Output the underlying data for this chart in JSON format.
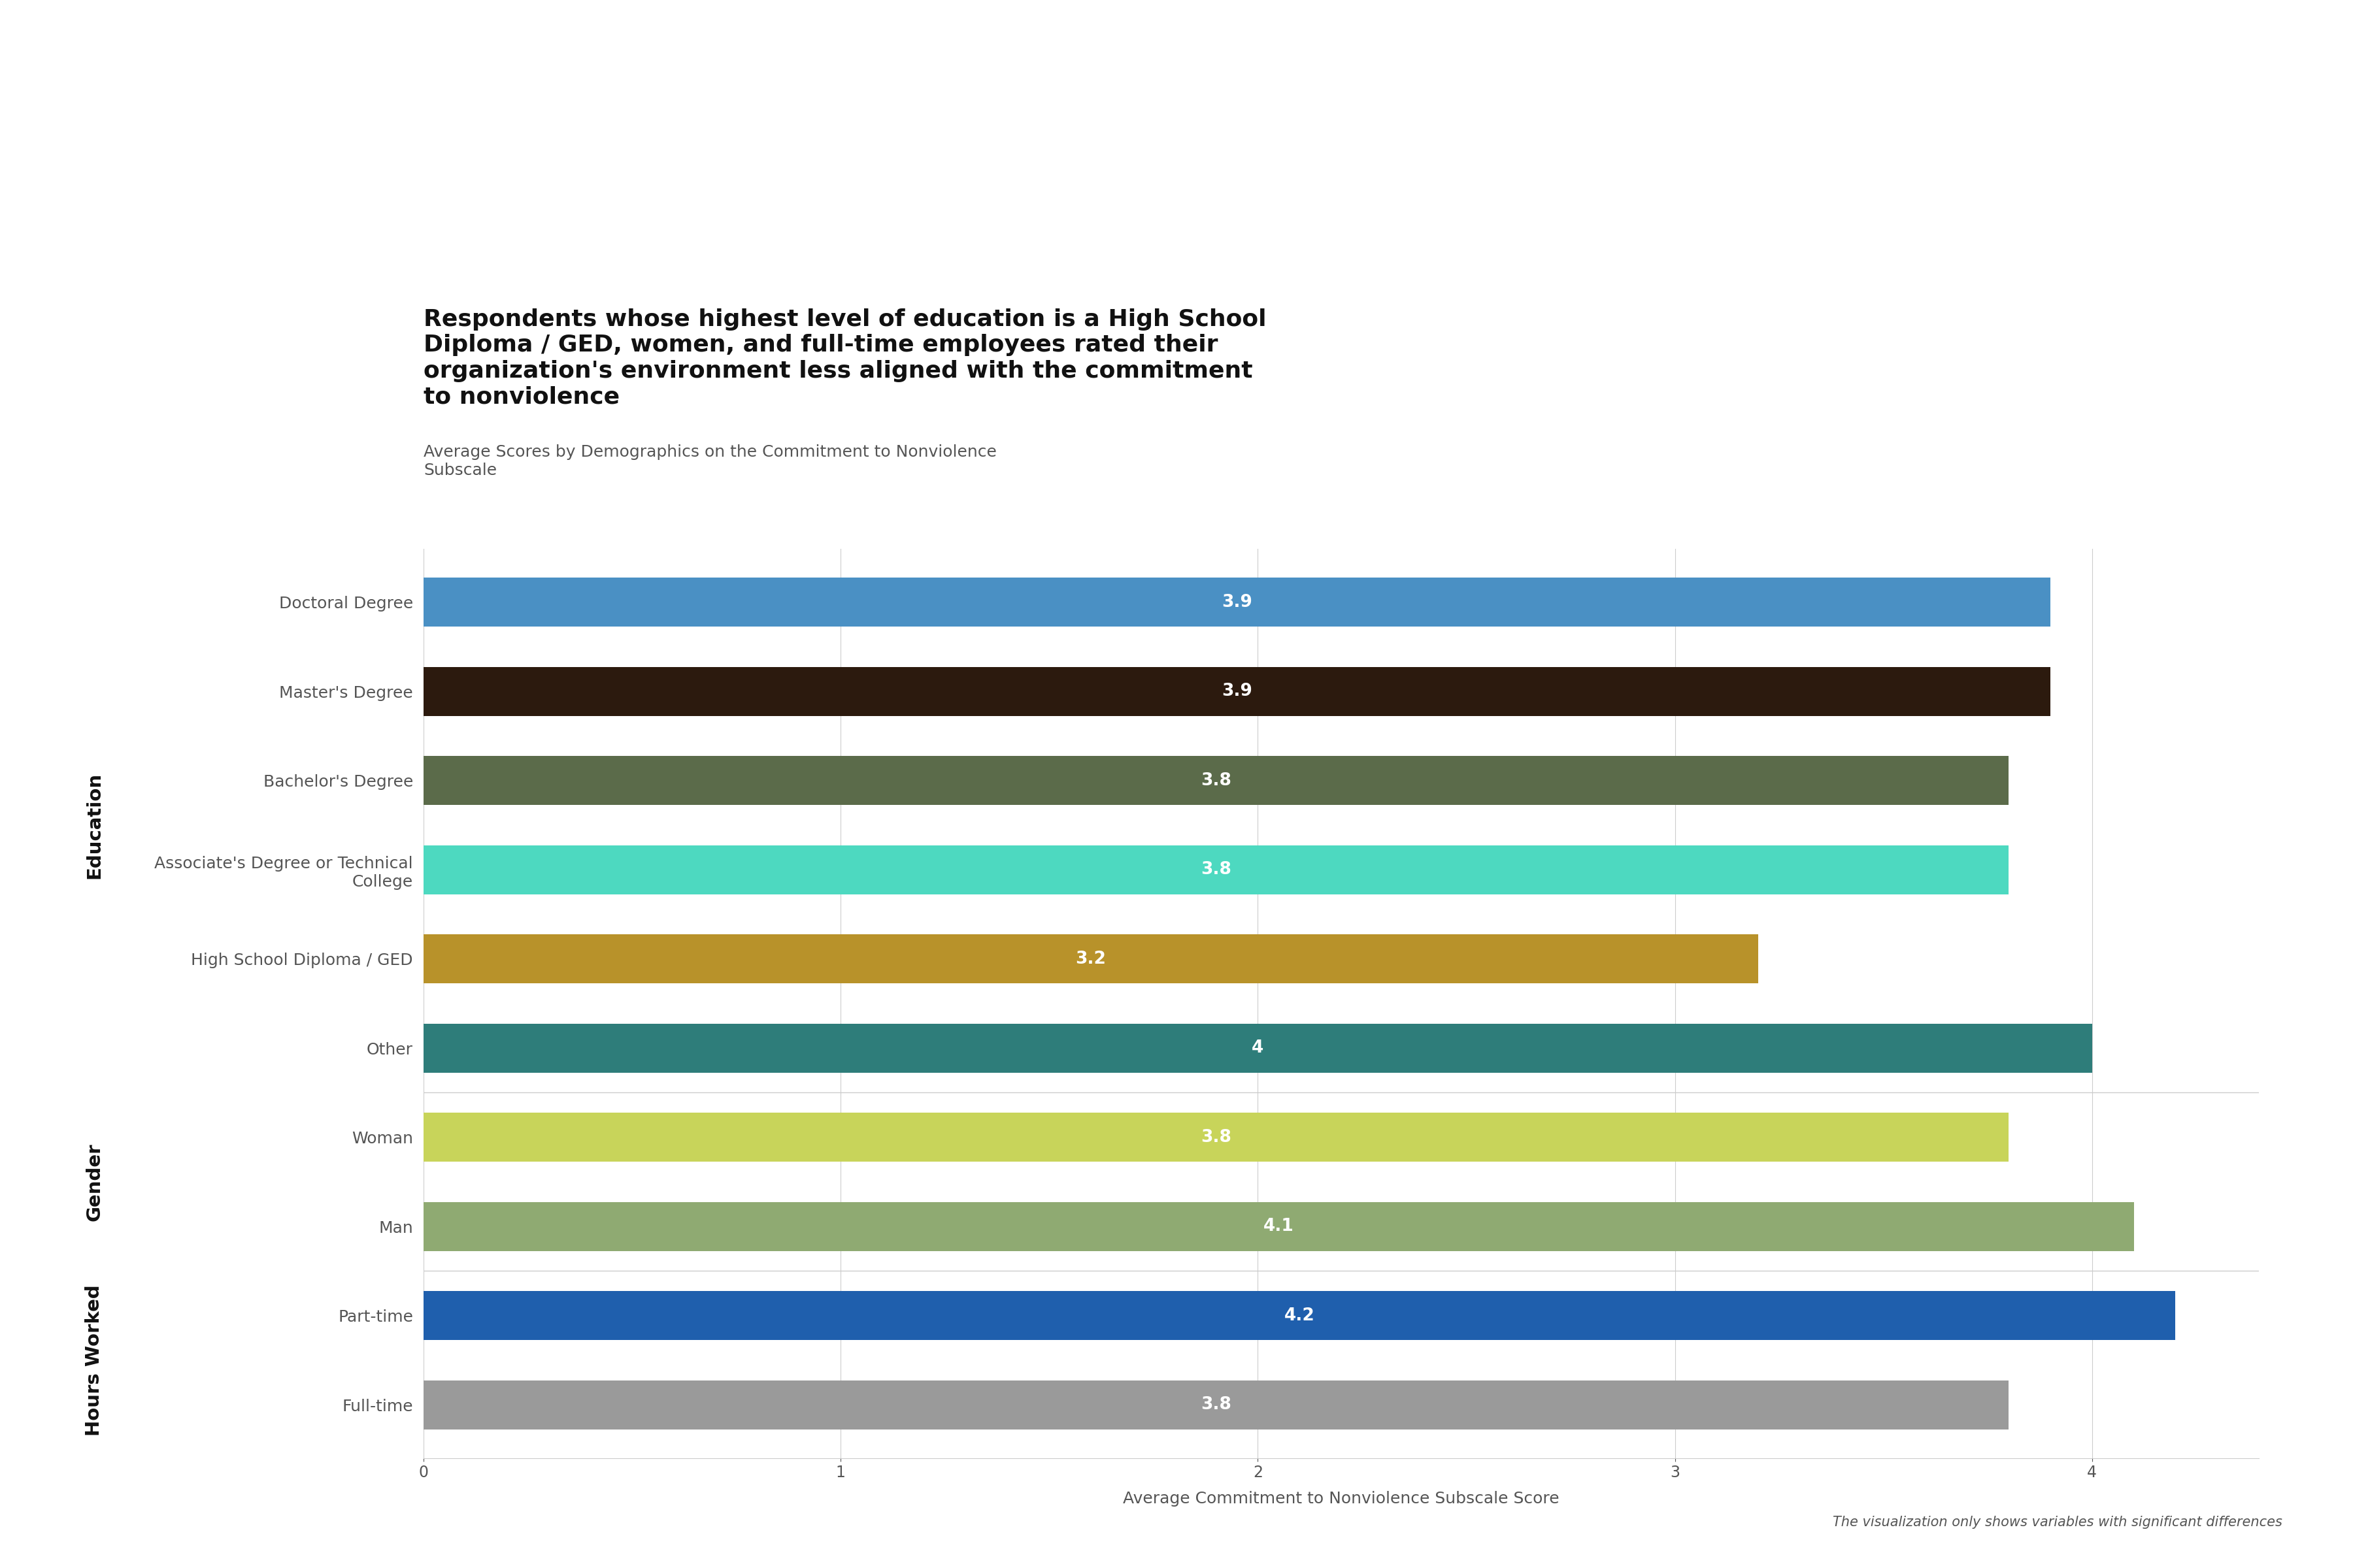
{
  "title_main": "Respondents whose highest level of education is a High School\nDiploma / GED, women, and full-time employees rated their\norganization's environment less aligned with the commitment\nto nonviolence",
  "title_sub": "Average Scores by Demographics on the Commitment to Nonviolence\nSubscale",
  "xlabel": "Average Commitment to Nonviolence Subscale Score",
  "footnote": "The visualization only shows variables with significant differences",
  "categories": [
    "Doctoral Degree",
    "Master's Degree",
    "Bachelor's Degree",
    "Associate's Degree or Technical\nCollege",
    "High School Diploma / GED",
    "Other",
    "Woman",
    "Man",
    "Part-time",
    "Full-time"
  ],
  "values": [
    3.9,
    3.9,
    3.8,
    3.8,
    3.2,
    4.0,
    3.8,
    4.1,
    4.2,
    3.8
  ],
  "colors": [
    "#4A90C4",
    "#2C1A0E",
    "#5B6B4A",
    "#4DD9C0",
    "#B8922A",
    "#2E7D7A",
    "#C8D45A",
    "#8FAA72",
    "#1F5FAD",
    "#9A9A9A"
  ],
  "xlim": [
    0,
    4.4
  ],
  "xticks": [
    0,
    1,
    2,
    3,
    4
  ],
  "bar_height": 0.55,
  "value_labels": [
    "3.9",
    "3.9",
    "3.8",
    "3.8",
    "3.2",
    "4",
    "3.8",
    "4.1",
    "4.2",
    "3.8"
  ],
  "background_color": "#FFFFFF",
  "text_color": "#555555",
  "group_label_color": "#111111",
  "title_fontsize": 26,
  "subtitle_fontsize": 18,
  "label_fontsize": 18,
  "tick_fontsize": 17,
  "value_fontsize": 19,
  "group_fontsize": 21,
  "footnote_fontsize": 15
}
